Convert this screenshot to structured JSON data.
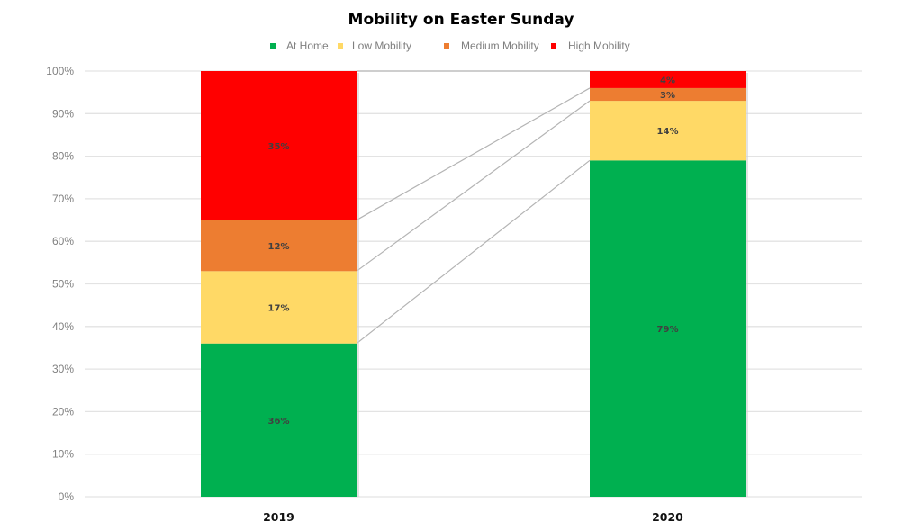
{
  "chart_data": {
    "type": "bar",
    "stacked": true,
    "normalized": true,
    "title": "Mobility on Easter Sunday",
    "xlabel": "",
    "ylabel": "",
    "ylim": [
      0,
      100
    ],
    "yticks": [
      "0%",
      "10%",
      "20%",
      "30%",
      "40%",
      "50%",
      "60%",
      "70%",
      "80%",
      "90%",
      "100%"
    ],
    "grid": true,
    "legend_position": "top",
    "categories": [
      "2019",
      "2020"
    ],
    "series": [
      {
        "name": "At Home",
        "color": "#00b050",
        "values": [
          36,
          79
        ],
        "labels": [
          "36%",
          "79%"
        ]
      },
      {
        "name": "Low Mobility",
        "color": "#ffd966",
        "values": [
          17,
          14
        ],
        "labels": [
          "17%",
          "14%"
        ]
      },
      {
        "name": "Medium Mobility",
        "color": "#ed7d31",
        "values": [
          12,
          3
        ],
        "labels": [
          "12%",
          "3%"
        ]
      },
      {
        "name": "High Mobility",
        "color": "#ff0000",
        "values": [
          35,
          4
        ],
        "labels": [
          "35%",
          "4%"
        ]
      }
    ],
    "series_lines": true
  }
}
